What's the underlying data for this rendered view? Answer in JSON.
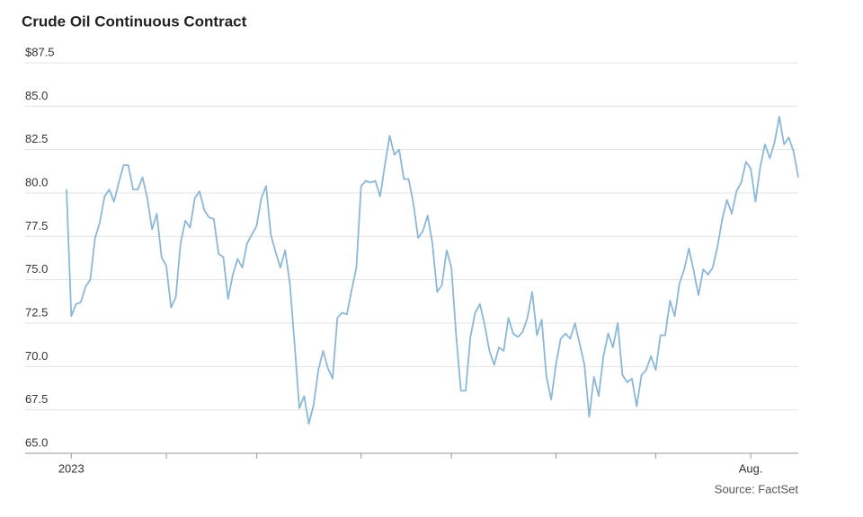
{
  "chart_data": {
    "type": "line",
    "title": "Crude Oil Continuous Contract",
    "source": "Source: FactSet",
    "color": "#8bb8d8",
    "grid": true,
    "ylim": [
      65,
      87.5
    ],
    "yticks": [
      {
        "value": 65,
        "label": "65.0"
      },
      67.5,
      {
        "value": 70,
        "label": "70.0"
      },
      72.5,
      {
        "value": 75,
        "label": "75.0"
      },
      77.5,
      {
        "value": 80,
        "label": "80.0"
      },
      82.5,
      {
        "value": 85,
        "label": "85.0"
      },
      {
        "value": 87.5,
        "label": "$87.5"
      }
    ],
    "xticks": [
      1,
      21,
      40,
      62,
      81,
      103,
      124,
      144
    ],
    "categories": [
      null,
      "2023",
      null,
      null,
      null,
      null,
      null,
      null,
      null,
      null,
      null,
      null,
      null,
      null,
      null,
      null,
      null,
      null,
      null,
      null,
      null,
      null,
      null,
      null,
      null,
      null,
      null,
      null,
      null,
      null,
      null,
      null,
      null,
      null,
      null,
      null,
      null,
      null,
      null,
      null,
      null,
      null,
      null,
      null,
      null,
      null,
      null,
      null,
      null,
      null,
      null,
      null,
      null,
      null,
      null,
      null,
      null,
      null,
      null,
      null,
      null,
      null,
      null,
      null,
      null,
      null,
      null,
      null,
      null,
      null,
      null,
      null,
      null,
      null,
      null,
      null,
      null,
      null,
      null,
      null,
      null,
      null,
      null,
      null,
      null,
      null,
      null,
      null,
      null,
      null,
      null,
      null,
      null,
      null,
      null,
      null,
      null,
      null,
      null,
      null,
      null,
      null,
      null,
      null,
      null,
      null,
      null,
      null,
      null,
      null,
      null,
      null,
      null,
      null,
      null,
      null,
      null,
      null,
      null,
      null,
      null,
      null,
      null,
      null,
      null,
      null,
      null,
      null,
      null,
      null,
      null,
      null,
      null,
      null,
      null,
      null,
      null,
      null,
      null,
      null,
      null,
      null,
      null,
      null,
      "Aug.",
      null,
      null,
      null,
      null,
      null,
      null,
      null,
      null,
      null,
      null
    ],
    "values": [
      80.2,
      72.9,
      73.6,
      73.7,
      74.6,
      75.0,
      77.4,
      78.3,
      79.8,
      80.2,
      79.5,
      80.6,
      81.6,
      81.6,
      80.2,
      80.2,
      80.9,
      79.7,
      77.9,
      78.8,
      76.3,
      75.8,
      73.4,
      74.0,
      77.1,
      78.4,
      78.0,
      79.7,
      80.1,
      79.0,
      78.6,
      78.5,
      76.5,
      76.3,
      73.9,
      75.3,
      76.2,
      75.7,
      77.1,
      77.6,
      78.1,
      79.7,
      80.4,
      77.6,
      76.6,
      75.7,
      76.7,
      74.8,
      71.3,
      67.6,
      68.3,
      66.7,
      67.8,
      69.8,
      70.9,
      69.9,
      69.3,
      72.8,
      73.1,
      73.0,
      74.4,
      75.7,
      80.4,
      80.7,
      80.6,
      80.7,
      79.8,
      81.6,
      83.3,
      82.2,
      82.5,
      80.8,
      80.8,
      79.4,
      77.4,
      77.8,
      78.7,
      77.1,
      74.3,
      74.7,
      76.7,
      75.7,
      71.8,
      68.6,
      68.6,
      71.7,
      73.1,
      73.6,
      72.4,
      70.9,
      70.1,
      71.1,
      70.9,
      72.8,
      71.9,
      71.7,
      72.0,
      72.8,
      74.3,
      71.8,
      72.7,
      69.4,
      68.1,
      70.1,
      71.6,
      71.9,
      71.6,
      72.5,
      71.3,
      70.1,
      67.1,
      69.4,
      68.3,
      70.6,
      71.9,
      71.1,
      72.5,
      69.5,
      69.1,
      69.3,
      67.7,
      69.5,
      69.8,
      70.6,
      69.8,
      71.8,
      71.8,
      73.8,
      72.9,
      74.8,
      75.6,
      76.8,
      75.5,
      74.1,
      75.6,
      75.3,
      75.7,
      76.9,
      78.5,
      79.6,
      78.8,
      80.1,
      80.6,
      81.8,
      81.4,
      79.5,
      81.5,
      82.8,
      82.0,
      82.9,
      84.4,
      82.8,
      83.2,
      82.4,
      80.9
    ]
  }
}
